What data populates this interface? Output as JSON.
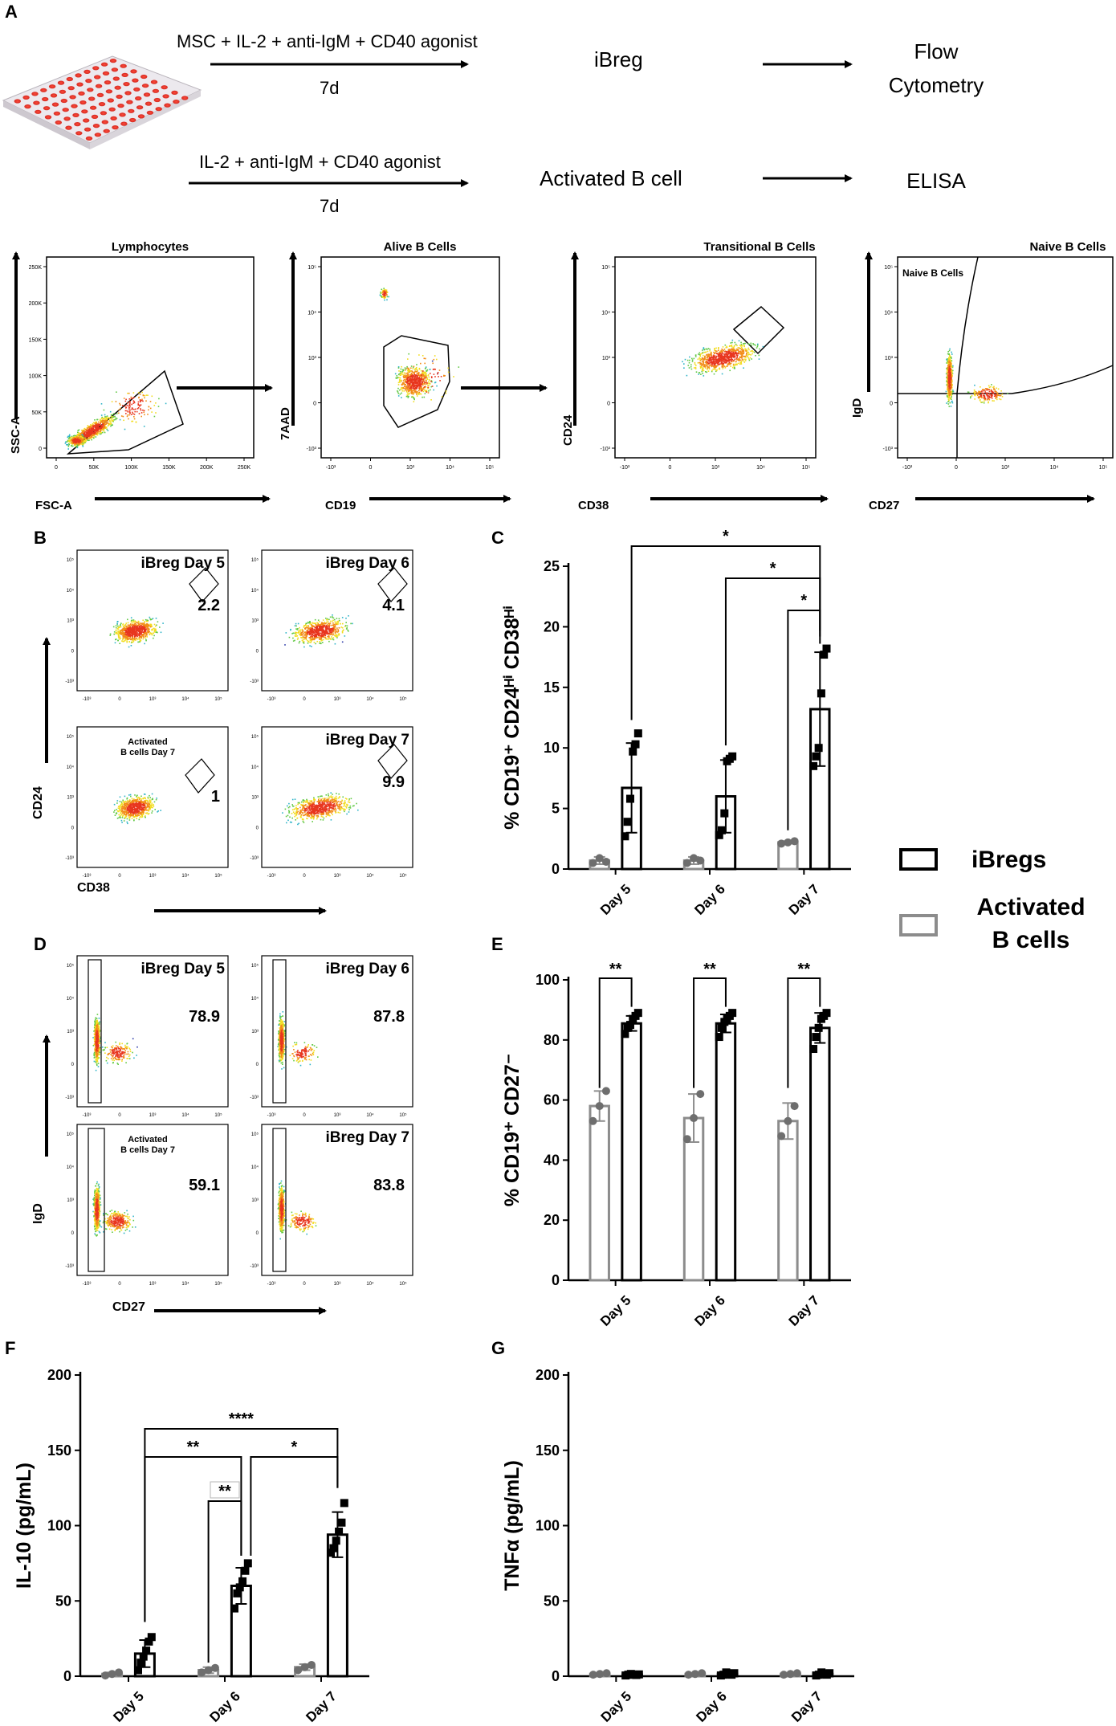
{
  "panels": {
    "A": "A",
    "B": "B",
    "C": "C",
    "D": "D",
    "E": "E",
    "F": "F",
    "G": "G"
  },
  "scheme": {
    "row1_condition": "MSC + IL-2 + anti-IgM + CD40 agonist",
    "row1_duration": "7d",
    "row1_product": "iBreg",
    "row1_readout_line1": "Flow",
    "row1_readout_line2": "Cytometry",
    "row2_condition": "IL-2 + anti-IgM + CD40 agonist",
    "row2_duration": "7d",
    "row2_product": "Activated B cell",
    "row2_readout": "ELISA"
  },
  "gating": [
    {
      "title": "Lymphocytes",
      "xlabel": "FSC-A",
      "ylabel": "SSC-A",
      "xticks": [
        "0",
        "50K",
        "100K",
        "150K",
        "200K",
        "250K"
      ],
      "yticks": [
        "0",
        "50K",
        "100K",
        "150K",
        "200K",
        "250K"
      ]
    },
    {
      "title": "Alive B Cells",
      "xlabel": "CD19",
      "ylabel": "7AAD",
      "xticks": [
        "-10³",
        "0",
        "10³",
        "10⁴",
        "10⁵"
      ],
      "yticks": [
        "-10³",
        "0",
        "10³",
        "10⁴",
        "10⁵"
      ]
    },
    {
      "title": "Transitional B Cells",
      "xlabel": "CD38",
      "ylabel": "CD24",
      "xticks": [
        "-10³",
        "0",
        "10³",
        "10⁴",
        "10⁵"
      ],
      "yticks": [
        "-10³",
        "0",
        "10³",
        "10⁴",
        "10⁵"
      ]
    },
    {
      "title": "Naive B Cells",
      "xlabel": "CD27",
      "ylabel": "IgD",
      "gate_label": "Naive B Cells",
      "xticks": [
        "-10³",
        "0",
        "10³",
        "10⁴",
        "10⁵"
      ],
      "yticks": [
        "-10³",
        "0",
        "10³",
        "10⁴",
        "10⁵"
      ]
    }
  ],
  "flow_B": {
    "xlabel": "CD38",
    "ylabel": "CD24",
    "plots": [
      {
        "label": "iBreg Day 5",
        "value": "2.2"
      },
      {
        "label": "iBreg Day 6",
        "value": "4.1"
      },
      {
        "label": "Activated B cells Day 7",
        "label_line1": "Activated",
        "label_line2": "B cells Day 7",
        "value": "1"
      },
      {
        "label": "iBreg Day 7",
        "value": "9.9"
      }
    ]
  },
  "flow_D": {
    "xlabel": "CD27",
    "ylabel": "IgD",
    "plots": [
      {
        "label": "iBreg Day 5",
        "value": "78.9"
      },
      {
        "label": "iBreg Day 6",
        "value": "87.8"
      },
      {
        "label": "Activated B cells Day 7",
        "label_line1": "Activated",
        "label_line2": "B cells Day 7",
        "value": "59.1"
      },
      {
        "label": "iBreg Day 7",
        "value": "83.8"
      }
    ]
  },
  "legend": {
    "ibregs": "iBregs",
    "activated_line1": "Activated",
    "activated_line2": "B cells",
    "ibregs_color": "#000000",
    "activated_color": "#8c8c8c"
  },
  "chart_data": [
    {
      "panel": "C",
      "type": "bar",
      "ylabel": "% CD19⁺ CD24ᴴⁱ CD38ᴴⁱ",
      "categories": [
        "Day 5",
        "Day 6",
        "Day 7"
      ],
      "ylim": [
        0,
        25
      ],
      "yticks": [
        0,
        5,
        10,
        15,
        20,
        25
      ],
      "series": [
        {
          "name": "Activated B cells",
          "values": [
            0.7,
            0.7,
            2.2
          ],
          "sd": [
            0.3,
            0.3,
            0.1
          ],
          "points": [
            [
              0.5,
              0.9,
              0.6
            ],
            [
              0.5,
              0.9,
              0.7
            ],
            [
              2.1,
              2.2,
              2.3
            ]
          ]
        },
        {
          "name": "iBregs",
          "values": [
            6.7,
            6.0,
            13.2
          ],
          "sd": [
            3.7,
            3.0,
            4.7
          ],
          "points": [
            [
              2.7,
              3.9,
              5.8,
              9.7,
              10.3,
              11.2
            ],
            [
              2.8,
              3.2,
              4.6,
              8.9,
              9.1,
              9.3
            ],
            [
              8.5,
              9.3,
              10.0,
              14.5,
              17.7,
              18.2
            ]
          ]
        }
      ],
      "brackets": [
        {
          "from": "iBregs Day 5",
          "to": "iBregs Day 7",
          "label": "*"
        },
        {
          "from": "iBregs Day 6",
          "to": "iBregs Day 7",
          "label": "*"
        },
        {
          "from": "Activated Day 7",
          "to": "iBregs Day 7",
          "label": "*"
        }
      ]
    },
    {
      "panel": "E",
      "type": "bar",
      "ylabel": "% CD19⁺ CD27⁻",
      "categories": [
        "Day 5",
        "Day 6",
        "Day 7"
      ],
      "ylim": [
        0,
        100
      ],
      "yticks": [
        0,
        20,
        40,
        60,
        80,
        100
      ],
      "series": [
        {
          "name": "Activated B cells",
          "values": [
            58,
            54,
            53
          ],
          "sd": [
            5,
            8,
            6
          ],
          "points": [
            [
              53,
              58,
              63
            ],
            [
              47,
              54,
              62
            ],
            [
              48,
              53,
              58
            ]
          ]
        },
        {
          "name": "iBregs",
          "values": [
            85.5,
            85.5,
            84
          ],
          "sd": [
            2.5,
            3,
            5
          ],
          "points": [
            [
              82,
              84,
              85,
              87,
              88,
              89
            ],
            [
              81,
              84,
              86,
              87,
              88,
              89
            ],
            [
              77,
              81,
              84,
              87,
              88,
              89
            ]
          ]
        }
      ],
      "brackets": [
        {
          "from": "Activated Day 5",
          "to": "iBregs Day 5",
          "label": "**"
        },
        {
          "from": "Activated Day 6",
          "to": "iBregs Day 6",
          "label": "**"
        },
        {
          "from": "Activated Day 7",
          "to": "iBregs Day 7",
          "label": "**"
        }
      ]
    },
    {
      "panel": "F",
      "type": "bar",
      "ylabel": "IL-10 (pg/mL)",
      "categories": [
        "Day 5",
        "Day 6",
        "Day 7"
      ],
      "ylim": [
        0,
        200
      ],
      "yticks": [
        0,
        50,
        100,
        150,
        200
      ],
      "series": [
        {
          "name": "Activated B cells",
          "values": [
            1.5,
            4,
            6
          ],
          "sd": [
            1,
            2,
            2
          ],
          "points": [
            [
              0.5,
              1.5,
              2.5
            ],
            [
              2.5,
              4,
              5.5
            ],
            [
              4,
              6,
              7.5
            ]
          ]
        },
        {
          "name": "iBregs",
          "values": [
            15,
            60,
            94
          ],
          "sd": [
            9,
            12,
            15
          ],
          "points": [
            [
              4,
              9,
              13,
              17,
              23,
              26
            ],
            [
              45,
              55,
              59,
              63,
              70,
              75
            ],
            [
              82,
              85,
              90,
              96,
              102,
              115
            ]
          ]
        }
      ],
      "brackets": [
        {
          "from": "iBregs Day 5",
          "to": "iBregs Day 7",
          "label": "****"
        },
        {
          "from": "iBregs Day 5",
          "to": "iBregs Day 6",
          "label": "**"
        },
        {
          "from": "iBregs Day 6",
          "to": "iBregs Day 7",
          "label": "*"
        },
        {
          "from": "Activated Day 6",
          "to": "iBregs Day 6",
          "label": "**"
        }
      ]
    },
    {
      "panel": "G",
      "type": "bar",
      "ylabel": "TNFα (pg/mL)",
      "categories": [
        "Day 5",
        "Day 6",
        "Day 7"
      ],
      "ylim": [
        0,
        200
      ],
      "yticks": [
        0,
        50,
        100,
        150,
        200
      ],
      "series": [
        {
          "name": "Activated B cells",
          "values": [
            1.5,
            1.5,
            1.5
          ],
          "sd": [
            0.5,
            0.5,
            0.5
          ],
          "points": [
            [
              1,
              1.5,
              2
            ],
            [
              1,
              1.5,
              2
            ],
            [
              1,
              1.5,
              2
            ]
          ]
        },
        {
          "name": "iBregs",
          "values": [
            1,
            1.5,
            1.5
          ],
          "sd": [
            0.5,
            0.8,
            0.8
          ],
          "points": [
            [
              0.5,
              1,
              1.5,
              1,
              0.8,
              1.2
            ],
            [
              0.5,
              1,
              2.5,
              1.5,
              1,
              2
            ],
            [
              0.5,
              1,
              2.5,
              1.5,
              1,
              2
            ]
          ]
        }
      ],
      "brackets": []
    }
  ]
}
